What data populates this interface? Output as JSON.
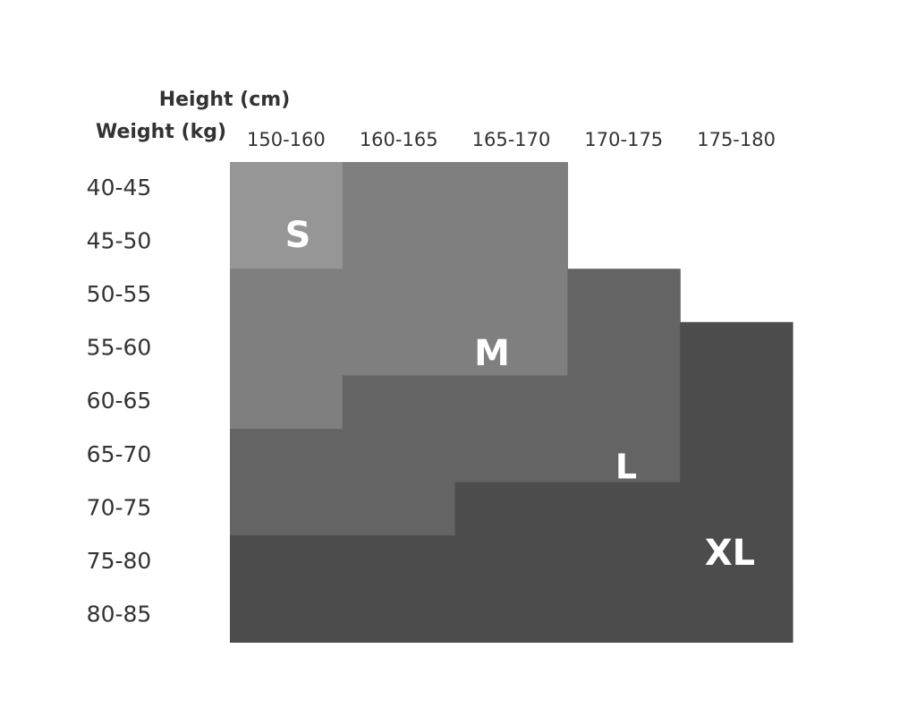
{
  "header": {
    "height_label": "Height (cm)",
    "weight_label": "Weight (kg)"
  },
  "columns": [
    "150-160",
    "160-165",
    "165-170",
    "170-175",
    "175-180"
  ],
  "rows": [
    "40-45",
    "45-50",
    "50-55",
    "55-60",
    "60-65",
    "65-70",
    "70-75",
    "75-80",
    "80-85"
  ],
  "sizes": [
    {
      "label": "S",
      "color": "#969696"
    },
    {
      "label": "M",
      "color": "#7f7f7f"
    },
    {
      "label": "L",
      "color": "#646464"
    },
    {
      "label": "XL",
      "color": "#4c4c4c"
    }
  ],
  "grid": [
    [
      "S",
      "M",
      "M",
      null,
      null
    ],
    [
      "S",
      "M",
      "M",
      null,
      null
    ],
    [
      "M",
      "M",
      "M",
      "L",
      null
    ],
    [
      "M",
      "M",
      "M",
      "L",
      "XL"
    ],
    [
      "M",
      "L",
      "L",
      "L",
      "XL"
    ],
    [
      "L",
      "L",
      "L",
      "L",
      "XL"
    ],
    [
      "L",
      "L",
      "XL",
      "XL",
      "XL"
    ],
    [
      "XL",
      "XL",
      "XL",
      "XL",
      "XL"
    ],
    [
      "XL",
      "XL",
      "XL",
      "XL",
      "XL"
    ]
  ]
}
